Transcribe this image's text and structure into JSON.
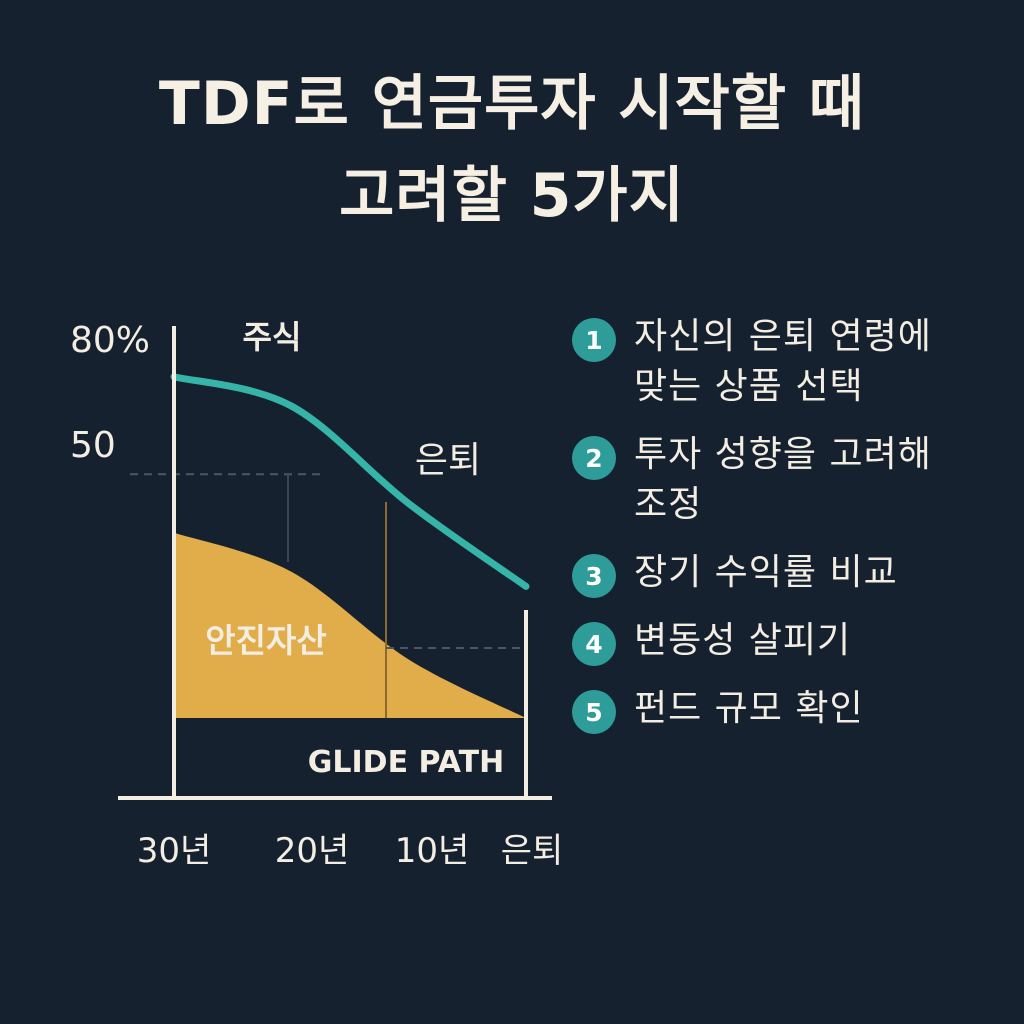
{
  "title": {
    "line1": "TDF로 연금투자 시작할 때",
    "line2": "고려할 5가지"
  },
  "chart_data": {
    "type": "area",
    "x_categories": [
      "30년",
      "20년",
      "10년",
      "은퇴"
    ],
    "y_ticks": [
      "80%",
      "50"
    ],
    "ylim": [
      0,
      80
    ],
    "series": [
      {
        "name": "주식",
        "color": "#36b4a7",
        "x": [
          0,
          1,
          2,
          3
        ],
        "values": [
          70,
          64,
          44,
          27
        ]
      },
      {
        "name": "안진자산",
        "color": "#e0ad4a",
        "x": [
          0,
          1,
          2,
          3
        ],
        "values": [
          38,
          30,
          12,
          0
        ]
      }
    ],
    "annotations": [
      "은퇴",
      "GLIDE PATH"
    ]
  },
  "list": [
    {
      "num": "1",
      "text_line1": "자신의 은퇴 연령에",
      "text_line2": "맞는 상품 선택"
    },
    {
      "num": "2",
      "text_line1": "투자 성향을 고려해",
      "text_line2": "조정"
    },
    {
      "num": "3",
      "text_line1": "장기 수익률 비교",
      "text_line2": ""
    },
    {
      "num": "4",
      "text_line1": "변동성 살피기",
      "text_line2": ""
    },
    {
      "num": "5",
      "text_line1": "펀드 규모 확인",
      "text_line2": ""
    }
  ]
}
